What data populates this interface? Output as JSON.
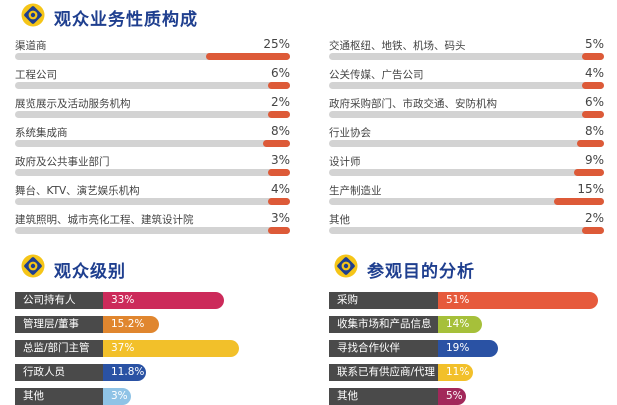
{
  "sections": {
    "business": {
      "title": "观众业务性质构成"
    },
    "level": {
      "title": "观众级别"
    },
    "purpose": {
      "title": "参观目的分析"
    }
  },
  "colors": {
    "title": "#1f3f8f",
    "bar_fill": "#dd5a38",
    "bar_track": "#d3d3d3",
    "label_box": "#4a4a4a",
    "icon_yellow": "#f5c518",
    "icon_navy": "#1f3f8f"
  },
  "chart_data": [
    {
      "type": "bar",
      "title": "观众业务性质构成",
      "unit": "%",
      "columns": [
        {
          "items": [
            {
              "label": "渠道商",
              "value": 25,
              "display": "25%"
            },
            {
              "label": "工程公司",
              "value": 6,
              "display": "6%"
            },
            {
              "label": "展览展示及活动服务机构",
              "value": 2,
              "display": "2%"
            },
            {
              "label": "系统集成商",
              "value": 8,
              "display": "8%"
            },
            {
              "label": "政府及公共事业部门",
              "value": 3,
              "display": "3%"
            },
            {
              "label": "舞台、KTV、演艺娱乐机构",
              "value": 4,
              "display": "4%"
            },
            {
              "label": "建筑照明、城市亮化工程、建筑设计院",
              "value": 3,
              "display": "3%"
            }
          ]
        },
        {
          "items": [
            {
              "label": "交通枢纽、地铁、机场、码头",
              "value": 5,
              "display": "5%"
            },
            {
              "label": "公关传媒、广告公司",
              "value": 4,
              "display": "4%"
            },
            {
              "label": "政府采购部门、市政交通、安防机构",
              "value": 6,
              "display": "6%"
            },
            {
              "label": "行业协会",
              "value": 8,
              "display": "8%"
            },
            {
              "label": "设计师",
              "value": 9,
              "display": "9%"
            },
            {
              "label": "生产制造业",
              "value": 15,
              "display": "15%"
            },
            {
              "label": "其他",
              "value": 2,
              "display": "2%"
            }
          ]
        }
      ]
    },
    {
      "type": "bar",
      "title": "观众级别",
      "unit": "%",
      "items": [
        {
          "label": "公司持有人",
          "value": 33,
          "display": "33%",
          "color": "#cc2a5a"
        },
        {
          "label": "管理层/董事",
          "value": 15.2,
          "display": "15.2%",
          "color": "#e0862f"
        },
        {
          "label": "总监/部门主管",
          "value": 37,
          "display": "37%",
          "color": "#f2c02a"
        },
        {
          "label": "行政人员",
          "value": 11.8,
          "display": "11.8%",
          "color": "#2a52a4"
        },
        {
          "label": "其他",
          "value": 3,
          "display": "3%",
          "color": "#8fc3e6"
        }
      ]
    },
    {
      "type": "bar",
      "title": "参观目的分析",
      "unit": "%",
      "items": [
        {
          "label": "采购",
          "value": 51,
          "display": "51%",
          "color": "#e65a3c"
        },
        {
          "label": "收集市场和产品信息",
          "value": 14,
          "display": "14%",
          "color": "#a6c03a"
        },
        {
          "label": "寻找合作伙伴",
          "value": 19,
          "display": "19%",
          "color": "#2a52a4"
        },
        {
          "label": "联系已有供应商/代理",
          "value": 11,
          "display": "11%",
          "color": "#f2c02a"
        },
        {
          "label": "其他",
          "value": 5,
          "display": "5%",
          "color": "#a2285a"
        }
      ]
    }
  ]
}
